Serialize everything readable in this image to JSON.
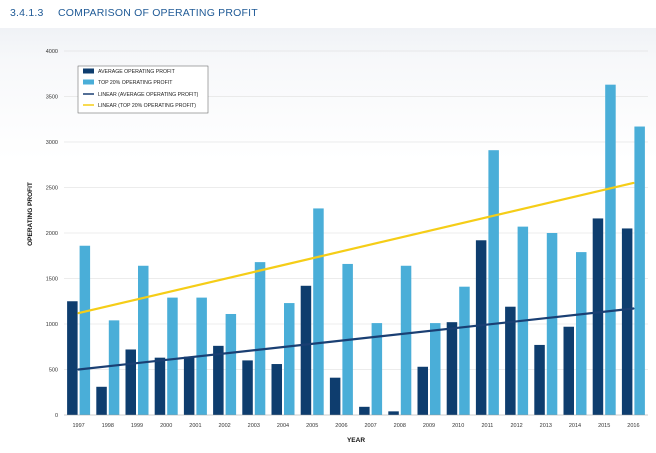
{
  "header": {
    "section_number": "3.4.1.3",
    "title": "COMPARISON OF OPERATING PROFIT"
  },
  "chart_data": {
    "type": "bar",
    "title": "",
    "xlabel": "YEAR",
    "ylabel": "OPERATING PROFIT",
    "ylim": [
      0,
      4000
    ],
    "yticks": [
      0,
      500,
      1000,
      1500,
      2000,
      2500,
      3000,
      3500,
      4000
    ],
    "grid": true,
    "legend_position": "top-left",
    "categories": [
      "1997",
      "1998",
      "1999",
      "2000",
      "2001",
      "2002",
      "2003",
      "2004",
      "2005",
      "2006",
      "2007",
      "2008",
      "2009",
      "2010",
      "2011",
      "2012",
      "2013",
      "2014",
      "2015",
      "2016"
    ],
    "series": [
      {
        "name": "AVERAGE OPERATING PROFIT",
        "kind": "bar",
        "color": "#0e3d6e",
        "values": [
          1250,
          310,
          720,
          630,
          640,
          760,
          600,
          560,
          1420,
          410,
          90,
          40,
          530,
          1020,
          1920,
          1190,
          770,
          970,
          2160,
          2050
        ]
      },
      {
        "name": "TOP 20% OPERATING PROFIT",
        "kind": "bar",
        "color": "#4aaed8",
        "values": [
          1860,
          1040,
          1640,
          1290,
          1290,
          1110,
          1680,
          1230,
          2270,
          1660,
          1010,
          1640,
          1010,
          1410,
          2910,
          2070,
          2000,
          1790,
          3630,
          3170
        ]
      },
      {
        "name": "LINEAR (AVERAGE OPERATING PROFIT)",
        "kind": "trendline",
        "color": "#1a3f73",
        "start": 500,
        "end": 1170
      },
      {
        "name": "LINEAR (TOP 20% OPERATING PROFIT)",
        "kind": "trendline",
        "color": "#f5cd17",
        "start": 1120,
        "end": 2550
      }
    ]
  }
}
